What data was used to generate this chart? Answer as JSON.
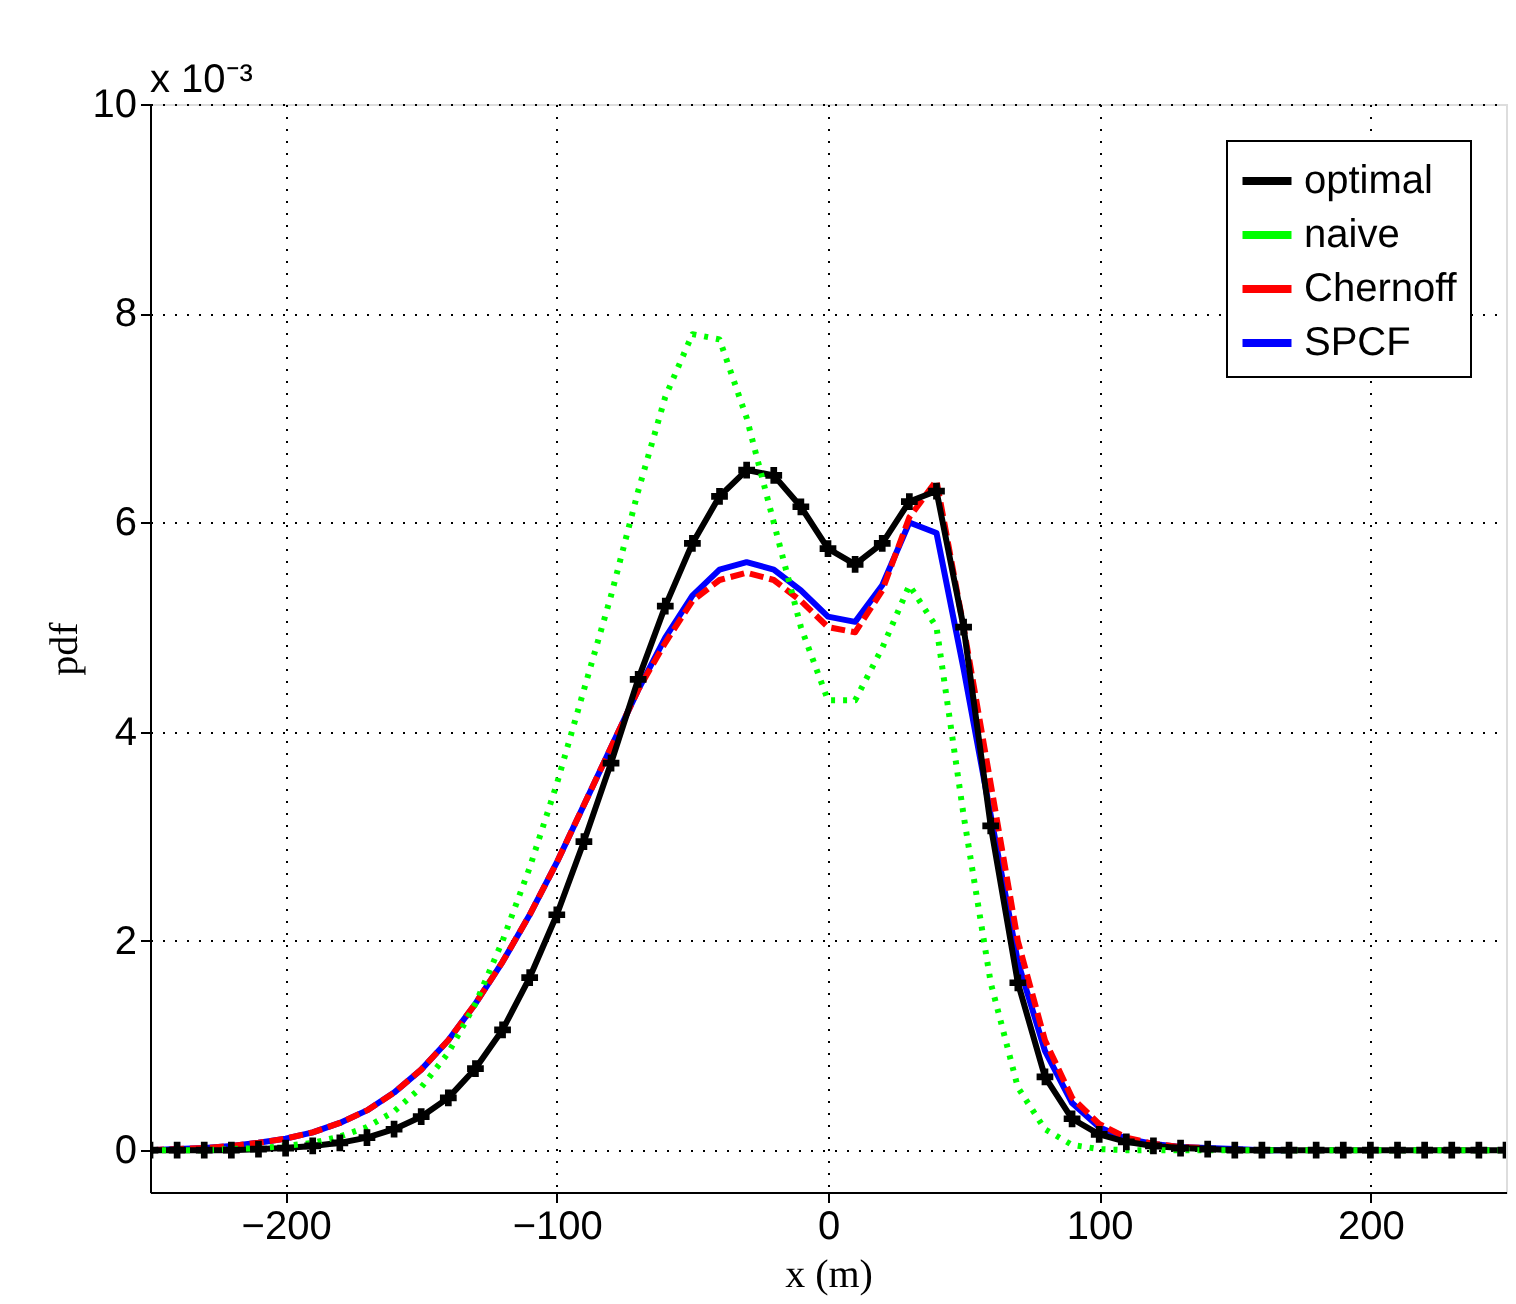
{
  "chart_data": {
    "type": "line",
    "xlabel": "x (m)",
    "ylabel": "pdf",
    "annotations": [
      "x 10⁻³"
    ],
    "x": [
      -250,
      -240,
      -230,
      -220,
      -210,
      -200,
      -190,
      -180,
      -170,
      -160,
      -150,
      -140,
      -130,
      -120,
      -110,
      -100,
      -90,
      -80,
      -70,
      -60,
      -50,
      -40,
      -30,
      -20,
      -10,
      0,
      10,
      20,
      30,
      40,
      50,
      60,
      70,
      80,
      90,
      100,
      110,
      120,
      130,
      140,
      150,
      160,
      170,
      180,
      190,
      200,
      210,
      220,
      230,
      240,
      250
    ],
    "series": [
      {
        "name": "optimal",
        "color": "#000000",
        "marker": "cross",
        "line_style": "solid",
        "values": [
          0,
          0,
          0,
          0,
          0.01,
          0.02,
          0.04,
          0.07,
          0.12,
          0.2,
          0.32,
          0.5,
          0.78,
          1.15,
          1.65,
          2.25,
          2.95,
          3.7,
          4.5,
          5.2,
          5.8,
          6.25,
          6.5,
          6.45,
          6.15,
          5.75,
          5.6,
          5.8,
          6.2,
          6.3,
          5.0,
          3.1,
          1.6,
          0.7,
          0.3,
          0.15,
          0.08,
          0.04,
          0.02,
          0.01,
          0,
          0,
          0,
          0,
          0,
          0,
          0,
          0,
          0,
          0,
          0
        ]
      },
      {
        "name": "naive",
        "color": "#00ff00",
        "marker": "none",
        "line_style": "dotted",
        "values": [
          0,
          0,
          0,
          0.01,
          0.02,
          0.04,
          0.07,
          0.13,
          0.22,
          0.37,
          0.6,
          0.93,
          1.4,
          2.0,
          2.7,
          3.5,
          4.4,
          5.3,
          6.3,
          7.2,
          7.8,
          7.75,
          7.0,
          6.0,
          5.0,
          4.3,
          4.3,
          4.8,
          5.4,
          5.0,
          3.2,
          1.6,
          0.6,
          0.2,
          0.05,
          0.01,
          0,
          0,
          0,
          0,
          0,
          0,
          0,
          0,
          0,
          0,
          0,
          0,
          0,
          0,
          0
        ]
      },
      {
        "name": "Chernoff",
        "color": "#ff0000",
        "marker": "none",
        "line_style": "dashed",
        "values": [
          0,
          0.01,
          0.02,
          0.04,
          0.07,
          0.11,
          0.17,
          0.26,
          0.38,
          0.55,
          0.77,
          1.05,
          1.4,
          1.8,
          2.25,
          2.75,
          3.3,
          3.85,
          4.4,
          4.85,
          5.25,
          5.45,
          5.52,
          5.45,
          5.25,
          5.0,
          4.95,
          5.35,
          6.05,
          6.4,
          5.0,
          3.5,
          2.0,
          1.05,
          0.5,
          0.25,
          0.12,
          0.06,
          0.03,
          0.02,
          null,
          null,
          null,
          null,
          null,
          null,
          null,
          null,
          null,
          null,
          null
        ]
      },
      {
        "name": "SPCF",
        "color": "#0000ff",
        "marker": "none",
        "line_style": "solid",
        "values": [
          0,
          0.01,
          0.02,
          0.04,
          0.07,
          0.11,
          0.17,
          0.26,
          0.38,
          0.55,
          0.77,
          1.05,
          1.4,
          1.8,
          2.25,
          2.75,
          3.3,
          3.85,
          4.4,
          4.9,
          5.3,
          5.55,
          5.62,
          5.55,
          5.35,
          5.1,
          5.05,
          5.4,
          6.0,
          5.9,
          4.6,
          3.2,
          1.8,
          0.95,
          0.45,
          0.22,
          0.11,
          0.06,
          0.03,
          0.02,
          0.01,
          0,
          0,
          null,
          null,
          null,
          null,
          null,
          null,
          null,
          null
        ]
      }
    ],
    "xlim": [
      -250,
      250
    ],
    "xticks": [
      -200,
      -100,
      0,
      100,
      200
    ],
    "ylim": [
      -0.4,
      10
    ],
    "yticks": [
      0,
      2,
      4,
      6,
      8,
      10
    ],
    "grid": true,
    "legend": "top right"
  }
}
